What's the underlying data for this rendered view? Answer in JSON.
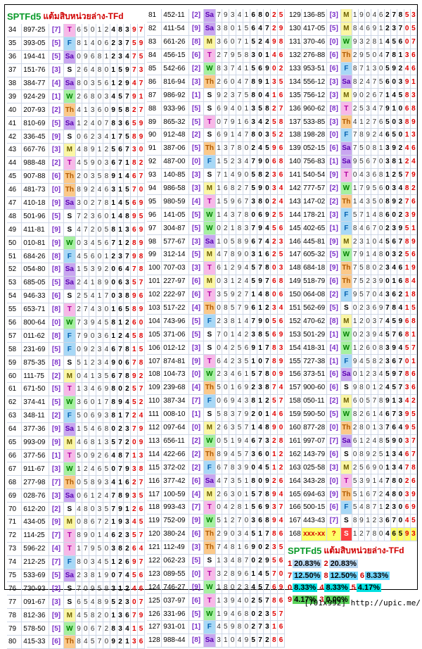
{
  "title": {
    "brand": "SPTFd5",
    "text": "แต้มสิบหน่วยล่าง-TFd"
  },
  "column_left": [
    [
      "34",
      "897-25",
      "[7]",
      "T",
      "6501248397"
    ],
    [
      "35",
      "393-05",
      "[5]",
      "F",
      "8140623759"
    ],
    [
      "36",
      "194-41",
      "[5]",
      "Sa",
      "0968123475"
    ],
    [
      "37",
      "151-76",
      "[3]",
      "S",
      "2648015973"
    ],
    [
      "38",
      "384-77",
      "[4]",
      "Sa",
      "8035612947"
    ],
    [
      "39",
      "924-29",
      "[1]",
      "W",
      "2680345791"
    ],
    [
      "40",
      "207-93",
      "[2]",
      "Th",
      "4136095827"
    ],
    [
      "41",
      "810-69",
      "[5]",
      "Sa",
      "1240783659"
    ],
    [
      "42",
      "336-45",
      "[9]",
      "S",
      "0623417589"
    ],
    [
      "43",
      "667-76",
      "[3]",
      "M",
      "4891256730"
    ],
    [
      "44",
      "988-48",
      "[2]",
      "T",
      "4590367182"
    ],
    [
      "45",
      "907-88",
      "[6]",
      "Th",
      "2035891467"
    ],
    [
      "46",
      "481-73",
      "[0]",
      "Th",
      "8924631570"
    ],
    [
      "47",
      "410-18",
      "[9]",
      "Sa",
      "3027814569"
    ],
    [
      "48",
      "501-96",
      "[5]",
      "S",
      "7236014895"
    ],
    [
      "49",
      "411-81",
      "[9]",
      "S",
      "4720581369"
    ],
    [
      "50",
      "010-81",
      "[9]",
      "W",
      "0345671289"
    ],
    [
      "51",
      "684-26",
      "[8]",
      "F",
      "4560123798"
    ],
    [
      "52",
      "054-80",
      "[8]",
      "Sa",
      "1539206478"
    ],
    [
      "53",
      "685-05",
      "[5]",
      "Sa",
      "2418906357"
    ],
    [
      "54",
      "946-33",
      "[6]",
      "S",
      "2541703896"
    ],
    [
      "55",
      "653-71",
      "[8]",
      "T",
      "2743016589"
    ],
    [
      "56",
      "800-64",
      "[0]",
      "W",
      "7394581260"
    ],
    [
      "57",
      "011-62",
      "[8]",
      "F",
      "7903612458"
    ],
    [
      "58",
      "231-69",
      "[5]",
      "F",
      "0923467815"
    ],
    [
      "59",
      "875-35",
      "[8]",
      "S",
      "5123490678"
    ],
    [
      "60",
      "111-75",
      "[2]",
      "M",
      "0413567892"
    ],
    [
      "61",
      "671-50",
      "[5]",
      "T",
      "1346980257"
    ],
    [
      "62",
      "374-41",
      "[5]",
      "W",
      "3601789452"
    ],
    [
      "63",
      "348-11",
      "[2]",
      "F",
      "5069381724"
    ],
    [
      "64",
      "377-36",
      "[9]",
      "Sa",
      "1546802379"
    ],
    [
      "65",
      "993-09",
      "[9]",
      "M",
      "4681357209"
    ],
    [
      "66",
      "377-56",
      "[1]",
      "T",
      "5092648713"
    ],
    [
      "67",
      "911-67",
      "[3]",
      "W",
      "1246507938"
    ],
    [
      "68",
      "277-98",
      "[7]",
      "Th",
      "0589341627"
    ],
    [
      "69",
      "028-76",
      "[3]",
      "Sa",
      "0612478935"
    ],
    [
      "70",
      "612-20",
      "[2]",
      "S",
      "4803579126"
    ],
    [
      "71",
      "434-05",
      "[9]",
      "M",
      "0867219345"
    ],
    [
      "72",
      "114-25",
      "[7]",
      "T",
      "8901462357"
    ],
    [
      "73",
      "596-22",
      "[4]",
      "T",
      "1795038264"
    ],
    [
      "74",
      "212-25",
      "[7]",
      "F",
      "8034512697"
    ],
    [
      "75",
      "533-69",
      "[5]",
      "Sa",
      "2381907456"
    ],
    [
      "76",
      "730-93",
      "[2]",
      "S",
      "7095831246"
    ],
    [
      "77",
      "091-67",
      "[3]",
      "S",
      "6548952307"
    ],
    [
      "78",
      "812-36",
      "[9]",
      "M",
      "4582013679"
    ],
    [
      "79",
      "578-50",
      "[5]",
      "W",
      "9067283415"
    ],
    [
      "80",
      "415-33",
      "[6]",
      "Th",
      "8457092136"
    ]
  ],
  "column_mid": [
    [
      "81",
      "452-11",
      "[2]",
      "Sa",
      "7934168025"
    ],
    [
      "82",
      "411-54",
      "[9]",
      "Sa",
      "3801564729"
    ],
    [
      "83",
      "661-26",
      "[8]",
      "M",
      "3607152498"
    ],
    [
      "84",
      "456-15",
      "[6]",
      "T",
      "2795830146"
    ],
    [
      "85",
      "542-66",
      "[2]",
      "W",
      "8374156902"
    ],
    [
      "86",
      "816-94",
      "[3]",
      "Th",
      "2604789135"
    ],
    [
      "87",
      "986-92",
      "[1]",
      "S",
      "9237580416"
    ],
    [
      "88",
      "933-96",
      "[5]",
      "S",
      "6940135827"
    ],
    [
      "89",
      "865-32",
      "[5]",
      "T",
      "0791634258"
    ],
    [
      "90",
      "912-48",
      "[2]",
      "S",
      "6914780352"
    ],
    [
      "91",
      "387-06",
      "[5]",
      "Th",
      "1378024596"
    ],
    [
      "92",
      "487-00",
      "[0]",
      "F",
      "1523479068"
    ],
    [
      "93",
      "140-85",
      "[3]",
      "S",
      "7149058236"
    ],
    [
      "94",
      "986-58",
      "[3]",
      "M",
      "1682759034"
    ],
    [
      "95",
      "980-59",
      "[4]",
      "T",
      "1596738024"
    ],
    [
      "96",
      "141-05",
      "[5]",
      "W",
      "1437806925"
    ],
    [
      "97",
      "304-87",
      "[5]",
      "W",
      "0218379456"
    ],
    [
      "98",
      "577-67",
      "[3]",
      "Sa",
      "1058967423"
    ],
    [
      "99",
      "312-14",
      "[5]",
      "M",
      "4789031625"
    ],
    [
      "100",
      "707-03",
      "[3]",
      "T",
      "6129457803"
    ],
    [
      "101",
      "227-97",
      "[6]",
      "M",
      "0312459768"
    ],
    [
      "102",
      "222-97",
      "[6]",
      "T",
      "3592714806"
    ],
    [
      "103",
      "517-22",
      "[4]",
      "Th",
      "0857961234"
    ],
    [
      "104",
      "743-96",
      "[5]",
      "F",
      "2381479056"
    ],
    [
      "105",
      "371-06",
      "[5]",
      "S",
      "7014238569"
    ],
    [
      "106",
      "012-12",
      "[3]",
      "S",
      "0425691783"
    ],
    [
      "107",
      "874-81",
      "[9]",
      "T",
      "6423510789"
    ],
    [
      "108",
      "104-73",
      "[0]",
      "W",
      "2346157809"
    ],
    [
      "109",
      "239-68",
      "[4]",
      "Th",
      "5016923874"
    ],
    [
      "110",
      "387-34",
      "[7]",
      "F",
      "0694381257"
    ],
    [
      "111",
      "008-10",
      "[1]",
      "S",
      "5837920146"
    ],
    [
      "112",
      "097-64",
      "[0]",
      "M",
      "2635714890"
    ],
    [
      "113",
      "656-11",
      "[2]",
      "W",
      "0519467328"
    ],
    [
      "114",
      "422-66",
      "[2]",
      "Th",
      "8945736012"
    ],
    [
      "115",
      "372-02",
      "[2]",
      "F",
      "6783904512"
    ],
    [
      "116",
      "377-42",
      "[6]",
      "Sa",
      "4735180926"
    ],
    [
      "117",
      "100-59",
      "[4]",
      "M",
      "2630157894"
    ],
    [
      "118",
      "993-43",
      "[7]",
      "T",
      "0428156937"
    ],
    [
      "119",
      "752-09",
      "[9]",
      "W",
      "5127036894"
    ],
    [
      "120",
      "380-24",
      "[6]",
      "Th",
      "2903451786"
    ],
    [
      "121",
      "112-49",
      "[3]",
      "Th",
      "7481690235"
    ],
    [
      "122",
      "062-23",
      "[5]",
      "S",
      "1348702956"
    ],
    [
      "123",
      "089-55",
      "[0]",
      "T",
      "3289614570"
    ],
    [
      "124",
      "746-27",
      "[9]",
      "W",
      "1802345769"
    ],
    [
      "125",
      "037-97",
      "[6]",
      "T",
      "1394025786"
    ],
    [
      "126",
      "331-96",
      "[5]",
      "W",
      "1946802357"
    ],
    [
      "127",
      "931-01",
      "[1]",
      "F",
      "4598027316"
    ],
    [
      "128",
      "988-44",
      "[8]",
      "Sa",
      "3104957286"
    ]
  ],
  "column_right": [
    [
      "129",
      "136-85",
      "[3]",
      "M",
      "1904627853"
    ],
    [
      "130",
      "417-05",
      "[5]",
      "M",
      "8469123705"
    ],
    [
      "131",
      "370-46",
      "[0]",
      "W",
      "9328145607"
    ],
    [
      "132",
      "276-88",
      "[6]",
      "Th",
      "2950478136"
    ],
    [
      "133",
      "953-51",
      "[6]",
      "F",
      "8713059246"
    ],
    [
      "134",
      "556-12",
      "[3]",
      "Sa",
      "8247560391"
    ],
    [
      "135",
      "756-12",
      "[3]",
      "M",
      "9026714583"
    ],
    [
      "136",
      "960-62",
      "[8]",
      "T",
      "2534791068"
    ],
    [
      "137",
      "533-85",
      "[3]",
      "Th",
      "4127650389"
    ],
    [
      "138",
      "198-28",
      "[0]",
      "F",
      "7892465013"
    ],
    [
      "139",
      "052-15",
      "[6]",
      "Sa",
      "7508139246"
    ],
    [
      "140",
      "756-83",
      "[1]",
      "Sa",
      "9567038124"
    ],
    [
      "141",
      "540-54",
      "[9]",
      "T",
      "0436812579"
    ],
    [
      "142",
      "777-57",
      "[2]",
      "W",
      "1795603482"
    ],
    [
      "143",
      "147-02",
      "[2]",
      "Th",
      "1435089276"
    ],
    [
      "144",
      "178-21",
      "[3]",
      "F",
      "5714860239"
    ],
    [
      "145",
      "402-65",
      "[1]",
      "F",
      "8467023951"
    ],
    [
      "146",
      "445-81",
      "[9]",
      "M",
      "2310456789"
    ],
    [
      "147",
      "605-32",
      "[5]",
      "W",
      "7914803256"
    ],
    [
      "148",
      "684-18",
      "[9]",
      "Th",
      "7580234619"
    ],
    [
      "149",
      "518-79",
      "[6]",
      "Th",
      "7523901684"
    ],
    [
      "150",
      "064-08",
      "[2]",
      "F",
      "9570436218"
    ],
    [
      "151",
      "562-69",
      "[5]",
      "S",
      "0236978415"
    ],
    [
      "152",
      "470-62",
      "[8]",
      "M",
      "1203745968"
    ],
    [
      "153",
      "501-29",
      "[1]",
      "W",
      "0239457681"
    ],
    [
      "154",
      "418-31",
      "[4]",
      "W",
      "1260839457"
    ],
    [
      "155",
      "727-38",
      "[1]",
      "F",
      "9458236701"
    ],
    [
      "156",
      "373-51",
      "[6]",
      "Sa",
      "0123459786"
    ],
    [
      "157",
      "900-60",
      "[6]",
      "S",
      "9801245736"
    ],
    [
      "158",
      "050-11",
      "[2]",
      "M",
      "6057891342"
    ],
    [
      "159",
      "590-50",
      "[5]",
      "W",
      "8261467395"
    ],
    [
      "160",
      "877-28",
      "[0]",
      "Th",
      "2801376495"
    ],
    [
      "161",
      "997-07",
      "[7]",
      "Sa",
      "6124859037"
    ],
    [
      "162",
      "143-79",
      "[6]",
      "S",
      "0892513467"
    ],
    [
      "163",
      "025-58",
      "[3]",
      "M",
      "2569013478"
    ],
    [
      "164",
      "343-28",
      "[0]",
      "T",
      "5391478026"
    ],
    [
      "165",
      "694-63",
      "[9]",
      "Th",
      "5167248039"
    ],
    [
      "166",
      "500-15",
      "[6]",
      "F",
      "5487123069"
    ],
    [
      "167",
      "443-43",
      "[7]",
      "S",
      "8912367045"
    ],
    [
      "168",
      "xxx-xx",
      "?",
      "S",
      "1278046593"
    ]
  ],
  "stats": {
    "title_brand": "SPTFd5",
    "title_text": "แต้มสิบหน่วยล่าง-TFd",
    "lines": [
      [
        [
          "1",
          "20.83%"
        ],
        [
          "2",
          "20.83%"
        ]
      ],
      [
        [
          "7",
          "12.50%"
        ],
        [
          "8",
          "12.50%"
        ],
        [
          "6",
          "8.33%"
        ]
      ],
      [
        [
          "0",
          "8.33%"
        ],
        [
          "4",
          "8.33%"
        ],
        [
          "5",
          "4.17%"
        ]
      ],
      [
        [
          "9",
          "4.17%"
        ],
        [
          "3",
          "0.00%"
        ]
      ]
    ]
  },
  "footer": "[701x992] http://upic.me/",
  "colors": {
    "brand": "#0a9a2a",
    "title": "#d00000",
    "group": "#7a2fc8",
    "highlight": "#ffff66"
  }
}
